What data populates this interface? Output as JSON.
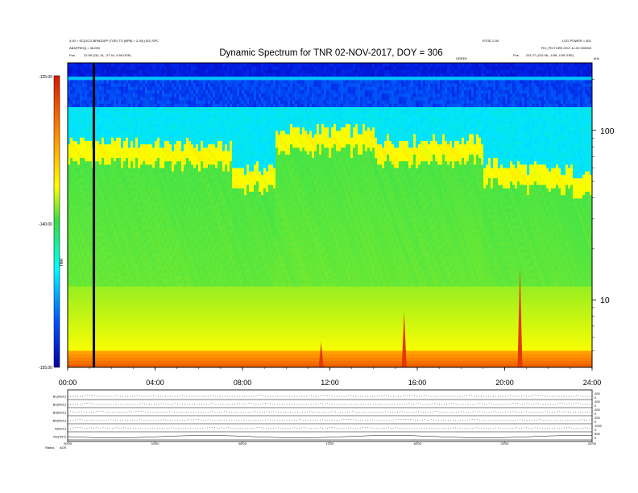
{
  "header": {
    "title": "Dynamic Spectrum for TNR 02-NOV-2017, DOY = 306",
    "left_line1": "4.00 = SC(GCG BPADDEP (TGE) TO (BPB) = 2.00) (SG) SPC",
    "left_line2": "ABJ(FREQ) = 36.000",
    "left_pos_label": "Pos",
    "left_pos_value": "22.59 (211.13, -27.44, 4.58 GSE)",
    "right_line1": "RTOD 2.00",
    "right_line2": "LOG POWER = 601",
    "right_line3": "FIG_PICTURE 2017-11-03 000000",
    "right_pos_label": "Pos",
    "right_pos_value": "231.27 (210.08, -4.58, 4.59 GSE)",
    "axis_top_label": "GREEK",
    "axis_top_unit": "kHz"
  },
  "colorbar": {
    "label": "TNR",
    "ticks": [
      "-125.00",
      "-140.00",
      "-155.00"
    ],
    "colors": [
      "#d41a00",
      "#ff7f00",
      "#ffff00",
      "#33dd44",
      "#00ffff",
      "#0055ff",
      "#0000aa"
    ]
  },
  "chart_data": {
    "type": "heatmap",
    "title": "Dynamic Spectrum for TNR 02-NOV-2017, DOY = 306",
    "xlabel": "",
    "ylabel": "",
    "x_ticks": [
      "00:00",
      "04:00",
      "08:00",
      "12:00",
      "16:00",
      "20:00",
      "24:00"
    ],
    "x_range_hours": [
      0,
      24
    ],
    "y_scale": "log",
    "y_ticks": [
      "100",
      "10"
    ],
    "y_range_khz": [
      4,
      250
    ],
    "color_scale_range": [
      -155,
      -125
    ],
    "data_gap_hour": 1.2,
    "spikes": [
      {
        "hour": 11.6,
        "strength": 0.25
      },
      {
        "hour": 15.4,
        "strength": 0.55
      },
      {
        "hour": 20.7,
        "strength": 1.0
      }
    ]
  },
  "lower_panel": {
    "rows": [
      "B1(AGC)",
      "B2(AGC)",
      "B3(AGC)",
      "B4(AGC)",
      "A(AGC)",
      "MJ(TNT)"
    ],
    "right_ticks": [
      [
        "200",
        "0"
      ],
      [
        "200",
        "0"
      ],
      [
        "200",
        "0"
      ],
      [
        "200",
        "0"
      ],
      [
        "1000",
        "0"
      ],
      [
        "500",
        "0"
      ]
    ],
    "x_ticks": [
      "00:00",
      "04:00",
      "08:00",
      "12:00",
      "16:00",
      "20:00",
      "24:00"
    ],
    "status_label": "Status",
    "status_value": "AOS"
  }
}
